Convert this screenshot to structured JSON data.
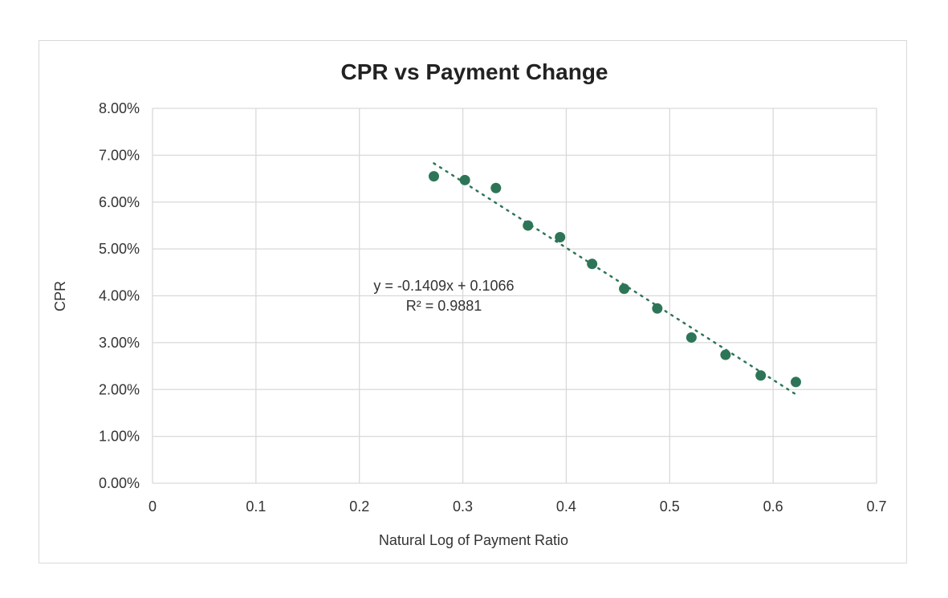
{
  "chart_data": {
    "type": "scatter",
    "title": "CPR vs Payment Change",
    "xlabel": "Natural Log of Payment Ratio",
    "ylabel": "CPR",
    "xlim": [
      0,
      0.7
    ],
    "ylim": [
      0,
      0.08
    ],
    "x_ticks": [
      "0",
      "0.1",
      "0.2",
      "0.3",
      "0.4",
      "0.5",
      "0.6",
      "0.7"
    ],
    "y_ticks": [
      "0.00%",
      "1.00%",
      "2.00%",
      "3.00%",
      "4.00%",
      "5.00%",
      "6.00%",
      "7.00%",
      "8.00%"
    ],
    "grid": true,
    "marker_color": "#2e7558",
    "trendline": {
      "type": "linear",
      "slope": -0.1409,
      "intercept": 0.1066,
      "x_range": [
        0.272,
        0.622
      ],
      "style": "dotted",
      "equation_text": "y = -0.1409x + 0.1066",
      "r2_text": "R² = 0.9881"
    },
    "series": [
      {
        "x": [
          0.272,
          0.302,
          0.332,
          0.363,
          0.394,
          0.425,
          0.456,
          0.488,
          0.521,
          0.554,
          0.588,
          0.622
        ],
        "y": [
          0.0655,
          0.0647,
          0.063,
          0.055,
          0.0525,
          0.0468,
          0.0415,
          0.0373,
          0.0311,
          0.0274,
          0.023,
          0.0216
        ]
      }
    ]
  }
}
